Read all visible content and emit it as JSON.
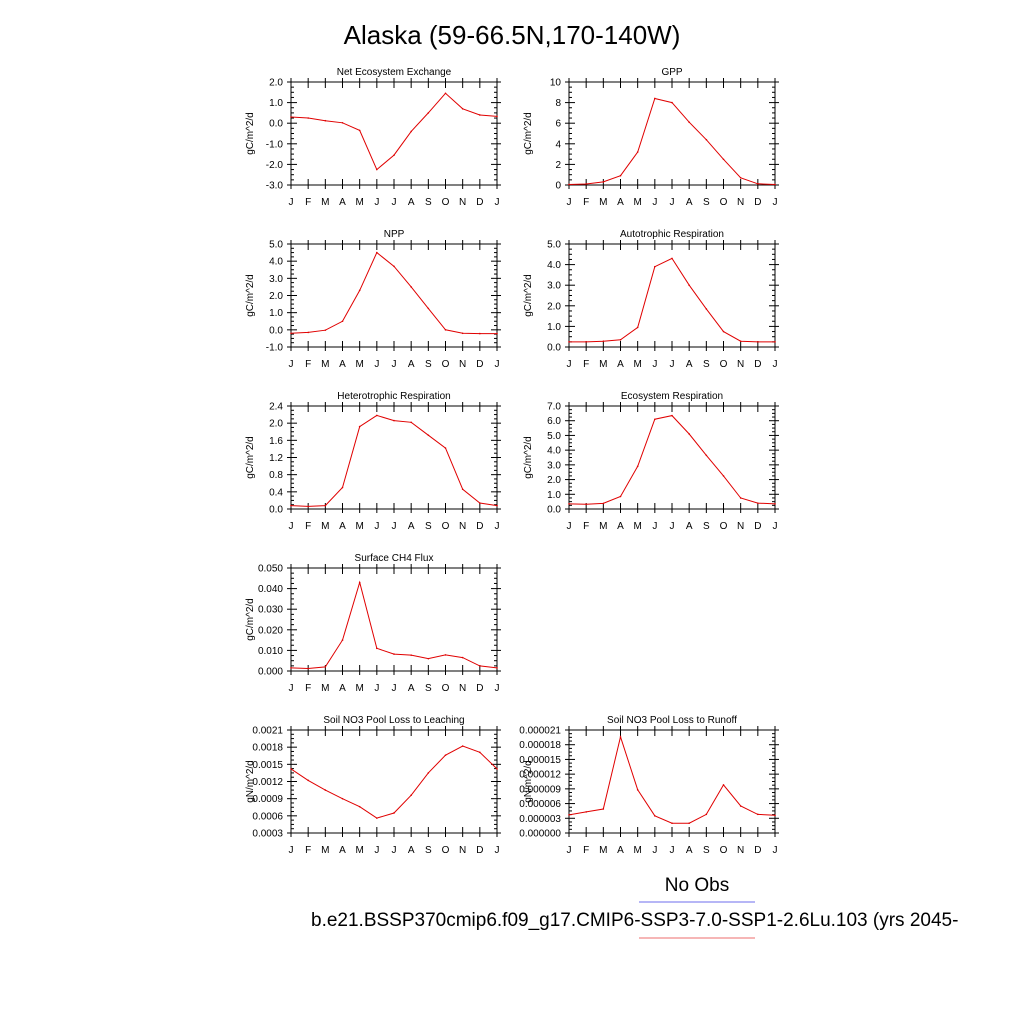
{
  "figure": {
    "title": "Alaska (59-66.5N,170-140W)",
    "legend": {
      "obs_label": "No Obs",
      "obs_color": "#8a8af0",
      "case_label": "b.e21.BSSP370cmip6.f09_g17.CMIP6-SSP3-7.0-SSP1-2.6Lu.103 (yrs 2045-",
      "case_color": "#f08a8a"
    },
    "line_color": "#e00000"
  },
  "chart_data": [
    {
      "type": "line",
      "title": "Net Ecosystem Exchange",
      "ylabel": "gC/m^2/d",
      "x": [
        "J",
        "F",
        "M",
        "A",
        "M",
        "J",
        "J",
        "A",
        "S",
        "O",
        "N",
        "D",
        "J"
      ],
      "ylim": [
        -3.0,
        2.0
      ],
      "yticks": [
        "-3.0",
        "-2.0",
        "-1.0",
        "0.0",
        "1.0",
        "2.0"
      ],
      "series": [
        {
          "values": [
            0.3,
            0.25,
            0.12,
            0.02,
            -0.35,
            -2.25,
            -1.55,
            -0.4,
            0.5,
            1.45,
            0.7,
            0.4,
            0.33
          ]
        }
      ]
    },
    {
      "type": "line",
      "title": "GPP",
      "ylabel": "gC/m^2/d",
      "x": [
        "J",
        "F",
        "M",
        "A",
        "M",
        "J",
        "J",
        "A",
        "S",
        "O",
        "N",
        "D",
        "J"
      ],
      "ylim": [
        0,
        10
      ],
      "yticks": [
        "0",
        "2",
        "4",
        "6",
        "8",
        "10"
      ],
      "series": [
        {
          "values": [
            0.05,
            0.1,
            0.3,
            0.9,
            3.2,
            8.4,
            8.0,
            6.1,
            4.4,
            2.5,
            0.7,
            0.12,
            0.05
          ]
        }
      ]
    },
    {
      "type": "line",
      "title": "NPP",
      "ylabel": "gC/m^2/d",
      "x": [
        "J",
        "F",
        "M",
        "A",
        "M",
        "J",
        "J",
        "A",
        "S",
        "O",
        "N",
        "D",
        "J"
      ],
      "ylim": [
        -1.0,
        5.0
      ],
      "yticks": [
        "-1.0",
        "0.0",
        "1.0",
        "2.0",
        "3.0",
        "4.0",
        "5.0"
      ],
      "series": [
        {
          "values": [
            -0.2,
            -0.15,
            -0.02,
            0.5,
            2.3,
            4.5,
            3.7,
            2.5,
            1.25,
            0.0,
            -0.2,
            -0.22,
            -0.22
          ]
        }
      ]
    },
    {
      "type": "line",
      "title": "Autotrophic Respiration",
      "ylabel": "gC/m^2/d",
      "x": [
        "J",
        "F",
        "M",
        "A",
        "M",
        "J",
        "J",
        "A",
        "S",
        "O",
        "N",
        "D",
        "J"
      ],
      "ylim": [
        0,
        5.0
      ],
      "yticks": [
        "0.0",
        "1.0",
        "2.0",
        "3.0",
        "4.0",
        "5.0"
      ],
      "series": [
        {
          "values": [
            0.25,
            0.25,
            0.28,
            0.35,
            0.95,
            3.9,
            4.3,
            3.0,
            1.85,
            0.75,
            0.28,
            0.25,
            0.25
          ]
        }
      ]
    },
    {
      "type": "line",
      "title": "Heterotrophic Respiration",
      "ylabel": "gC/m^2/d",
      "x": [
        "J",
        "F",
        "M",
        "A",
        "M",
        "J",
        "J",
        "A",
        "S",
        "O",
        "N",
        "D",
        "J"
      ],
      "ylim": [
        0,
        2.4
      ],
      "yticks": [
        "0.0",
        "0.4",
        "0.8",
        "1.2",
        "1.6",
        "2.0",
        "2.4"
      ],
      "series": [
        {
          "values": [
            0.08,
            0.06,
            0.08,
            0.5,
            1.92,
            2.18,
            2.06,
            2.02,
            1.72,
            1.42,
            0.46,
            0.14,
            0.08
          ]
        }
      ]
    },
    {
      "type": "line",
      "title": "Ecosystem Respiration",
      "ylabel": "gC/m^2/d",
      "x": [
        "J",
        "F",
        "M",
        "A",
        "M",
        "J",
        "J",
        "A",
        "S",
        "O",
        "N",
        "D",
        "J"
      ],
      "ylim": [
        0,
        7.0
      ],
      "yticks": [
        "0.0",
        "1.0",
        "2.0",
        "3.0",
        "4.0",
        "5.0",
        "6.0",
        "7.0"
      ],
      "series": [
        {
          "values": [
            0.35,
            0.32,
            0.38,
            0.85,
            2.9,
            6.1,
            6.35,
            5.1,
            3.65,
            2.25,
            0.75,
            0.4,
            0.35
          ]
        }
      ]
    },
    {
      "type": "line",
      "title": "Surface CH4 Flux",
      "ylabel": "gC/m^2/d",
      "x": [
        "J",
        "F",
        "M",
        "A",
        "M",
        "J",
        "J",
        "A",
        "S",
        "O",
        "N",
        "D",
        "J"
      ],
      "ylim": [
        0,
        0.05
      ],
      "yticks": [
        "0.000",
        "0.010",
        "0.020",
        "0.030",
        "0.040",
        "0.050"
      ],
      "series": [
        {
          "values": [
            0.0015,
            0.0012,
            0.002,
            0.015,
            0.043,
            0.011,
            0.0082,
            0.0077,
            0.006,
            0.0078,
            0.0065,
            0.0025,
            0.0015
          ]
        }
      ]
    },
    {
      "type": "line",
      "title": "Soil NO3 Pool Loss to Leaching",
      "ylabel": "gN/m^2/d",
      "x": [
        "J",
        "F",
        "M",
        "A",
        "M",
        "J",
        "J",
        "A",
        "S",
        "O",
        "N",
        "D",
        "J"
      ],
      "ylim": [
        0.0003,
        0.0021
      ],
      "yticks": [
        "0.0003",
        "0.0006",
        "0.0009",
        "0.0012",
        "0.0015",
        "0.0018",
        "0.0021"
      ],
      "series": [
        {
          "values": [
            0.00142,
            0.00122,
            0.00105,
            0.0009,
            0.00076,
            0.00056,
            0.00065,
            0.00096,
            0.00135,
            0.00166,
            0.00182,
            0.00171,
            0.00142
          ]
        }
      ]
    },
    {
      "type": "line",
      "title": "Soil NO3 Pool Loss to Runoff",
      "ylabel": "gN/m^2/d",
      "x": [
        "J",
        "F",
        "M",
        "A",
        "M",
        "J",
        "J",
        "A",
        "S",
        "O",
        "N",
        "D",
        "J"
      ],
      "ylim": [
        0,
        2.1e-05
      ],
      "yticks": [
        "0.000000",
        "0.000003",
        "0.000006",
        "0.000009",
        "0.000012",
        "0.000015",
        "0.000018",
        "0.000021"
      ],
      "series": [
        {
          "values": [
            3.7e-06,
            4.3e-06,
            4.9e-06,
            1.96e-05,
            8.8e-06,
            3.5e-06,
            2e-06,
            2e-06,
            3.8e-06,
            9.8e-06,
            5.5e-06,
            3.8e-06,
            3.6e-06
          ]
        }
      ]
    }
  ]
}
